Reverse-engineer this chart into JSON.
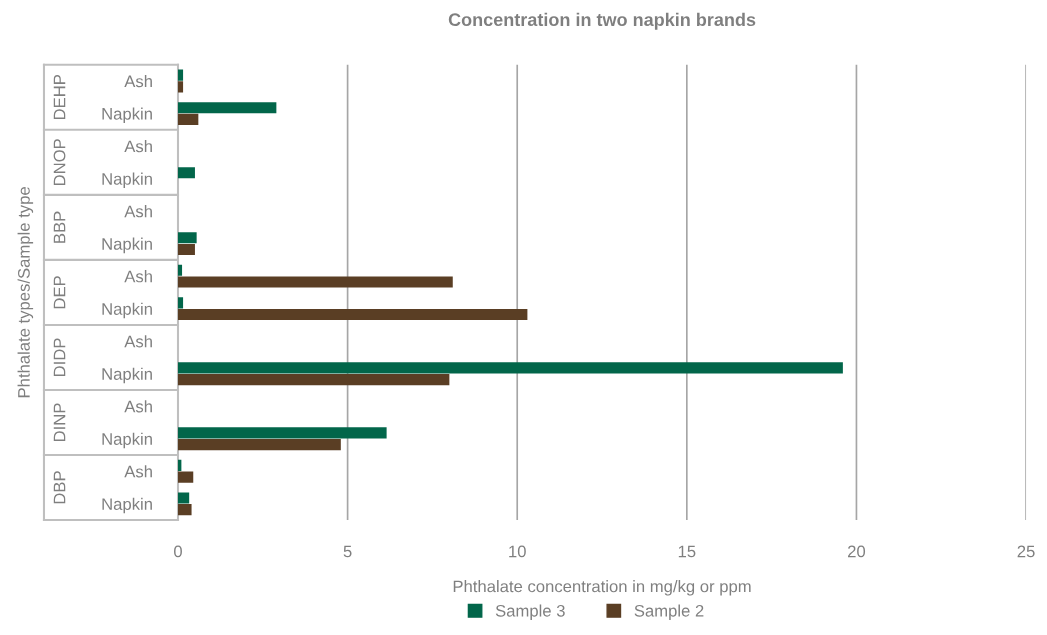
{
  "chart_data": {
    "type": "bar",
    "orientation": "horizontal",
    "title": "Concentration in two napkin brands",
    "xlabel": "Phthalate concentration in mg/kg or ppm",
    "ylabel": "Phthalate types/Sample type",
    "categories": [
      "Ash",
      "Napkin",
      "Ash",
      "Napkin",
      "Ash",
      "Napkin",
      "Ash",
      "Napkin",
      "Ash",
      "Napkin",
      "Ash",
      "Napkin",
      "Ash",
      "Napkin"
    ],
    "annotations": [
      "DEHP",
      "DNOP",
      "BBP",
      "DEP",
      "DIDP",
      "DINP",
      "DBP"
    ],
    "series": [
      {
        "name": "Sample 3",
        "color": "#02664a",
        "values": [
          0.15,
          2.9,
          null,
          0.5,
          null,
          0.55,
          0.12,
          0.15,
          null,
          19.6,
          null,
          6.15,
          0.1,
          0.33
        ]
      },
      {
        "name": "Sample 2",
        "color": "#5a3e24",
        "values": [
          0.15,
          0.6,
          null,
          null,
          null,
          0.5,
          8.1,
          10.3,
          null,
          8.0,
          null,
          4.8,
          0.45,
          0.4
        ]
      }
    ],
    "xlim": [
      0,
      25
    ],
    "xticks": [
      0,
      5,
      10,
      15,
      20,
      25
    ],
    "grid": "x",
    "legend": "bottom"
  }
}
